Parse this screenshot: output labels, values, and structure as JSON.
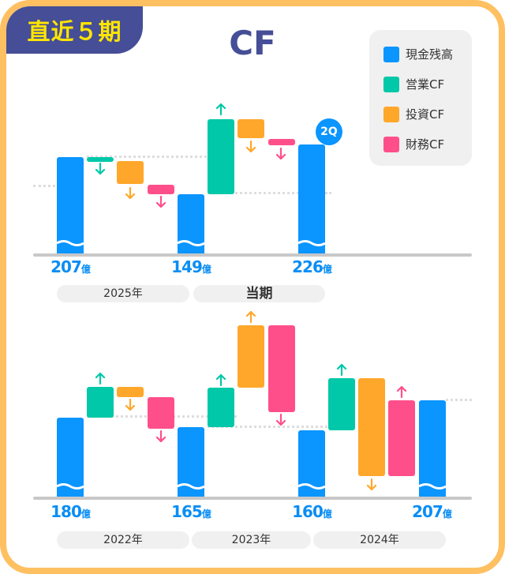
{
  "badge": "直近５期",
  "title": "CF",
  "legend": [
    {
      "label": "現金残高",
      "color": "#0a95ff"
    },
    {
      "label": "営業CF",
      "color": "#00c8a8"
    },
    {
      "label": "投資CF",
      "color": "#ffa72a"
    },
    {
      "label": "財務CF",
      "color": "#ff4f8b"
    }
  ],
  "current_marker": "2Q",
  "unit": "億",
  "chart_data": [
    {
      "type": "waterfall",
      "balances": [
        {
          "value": "207",
          "unit": "億"
        },
        {
          "value": "149",
          "unit": "億"
        },
        {
          "value": "226",
          "unit": "億"
        }
      ],
      "periods": [
        "2025年",
        "当期"
      ],
      "flows": [
        {
          "period": "2025年",
          "営業CF": "down",
          "投資CF": "down",
          "財務CF": "down"
        },
        {
          "period": "当期",
          "営業CF": "up",
          "投資CF": "down",
          "財務CF": "down"
        }
      ]
    },
    {
      "type": "waterfall",
      "balances": [
        {
          "value": "180",
          "unit": "億"
        },
        {
          "value": "165",
          "unit": "億"
        },
        {
          "value": "160",
          "unit": "億"
        },
        {
          "value": "207",
          "unit": "億"
        }
      ],
      "periods": [
        "2022年",
        "2023年",
        "2024年"
      ],
      "flows": [
        {
          "period": "2022年",
          "営業CF": "up",
          "投資CF": "down",
          "財務CF": "down"
        },
        {
          "period": "2023年",
          "営業CF": "up",
          "投資CF": "up",
          "財務CF": "down"
        },
        {
          "period": "2024年",
          "営業CF": "up",
          "投資CF": "down",
          "財務CF": "up"
        }
      ]
    }
  ]
}
